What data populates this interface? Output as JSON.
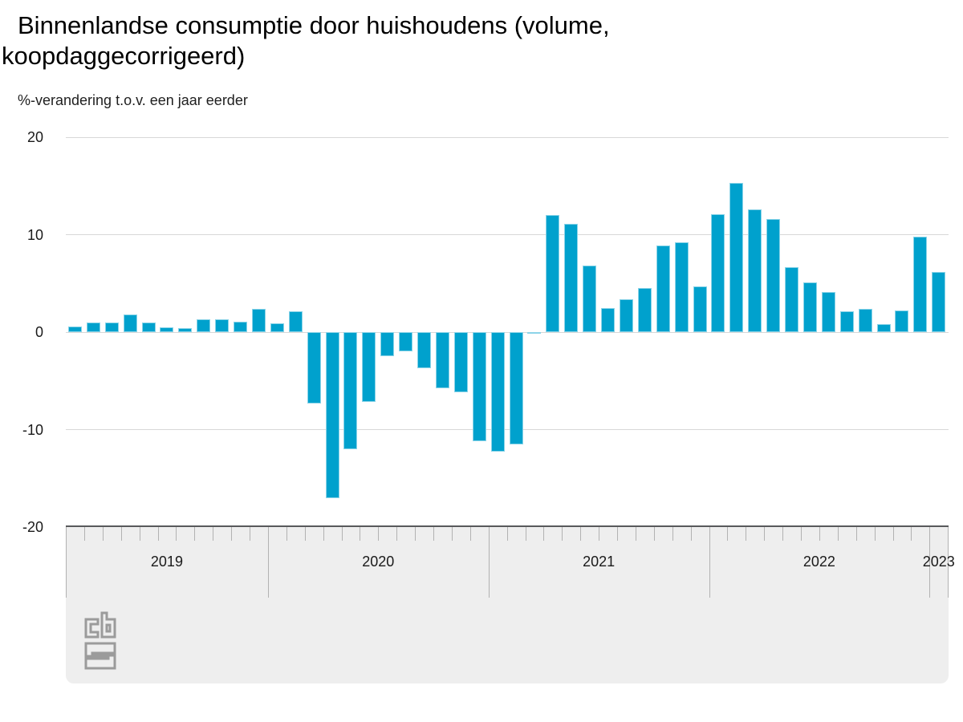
{
  "header": {
    "title_lines": [
      "Binnenlandse consumptie door huishoudens (volume,",
      "koopdaggecorrigeerd)"
    ],
    "subtitle": "%-verandering t.o.v. een jaar eerder"
  },
  "branding": {
    "logo_name": "CBS (Centraal Bureau voor de Statistiek) logo"
  },
  "colors": {
    "bar": "#00a1cd",
    "gridline": "#d8d8d8",
    "axis_band": "#eeeeee",
    "axis_line": "#58595b",
    "tick": "#b2b2b2",
    "text": "#1a1a1a"
  },
  "chart_data": {
    "type": "bar",
    "title": "Binnenlandse consumptie door huishoudens (volume, koopdaggecorrigeerd)",
    "subtitle": "%-verandering t.o.v. een jaar eerder",
    "unit": "%",
    "ylim": [
      -20,
      20
    ],
    "yticks": [
      20,
      10,
      0,
      -10,
      -20
    ],
    "grid": true,
    "legend": "none",
    "x_axis_years": [
      {
        "label": "2019",
        "months": 11
      },
      {
        "label": "2020",
        "months": 12
      },
      {
        "label": "2021",
        "months": 12
      },
      {
        "label": "2022",
        "months": 12
      },
      {
        "label": "2023",
        "months": 1
      }
    ],
    "series": [
      {
        "name": "%-verandering t.o.v. een jaar eerder",
        "months": [
          "2019-02",
          "2019-03",
          "2019-04",
          "2019-05",
          "2019-06",
          "2019-07",
          "2019-08",
          "2019-09",
          "2019-10",
          "2019-11",
          "2019-12",
          "2020-01",
          "2020-02",
          "2020-03",
          "2020-04",
          "2020-05",
          "2020-06",
          "2020-07",
          "2020-08",
          "2020-09",
          "2020-10",
          "2020-11",
          "2020-12",
          "2021-01",
          "2021-02",
          "2021-03",
          "2021-04",
          "2021-05",
          "2021-06",
          "2021-07",
          "2021-08",
          "2021-09",
          "2021-10",
          "2021-11",
          "2021-12",
          "2022-01",
          "2022-02",
          "2022-03",
          "2022-04",
          "2022-05",
          "2022-06",
          "2022-07",
          "2022-08",
          "2022-09",
          "2022-10",
          "2022-11",
          "2022-12",
          "2023-01"
        ],
        "values": [
          0.6,
          1.0,
          1.0,
          1.8,
          1.0,
          0.5,
          0.4,
          1.3,
          1.3,
          1.1,
          2.4,
          0.9,
          2.1,
          -7.3,
          -17.0,
          -12.0,
          -7.2,
          -2.5,
          -2.0,
          -3.7,
          -5.8,
          -6.2,
          -11.2,
          -12.3,
          -11.5,
          -0.2,
          12.0,
          11.1,
          6.8,
          2.5,
          3.4,
          4.5,
          8.9,
          9.2,
          4.7,
          12.1,
          15.3,
          12.6,
          11.6,
          6.7,
          5.1,
          4.1,
          2.1,
          2.4,
          0.8,
          2.2,
          9.8,
          6.2
        ]
      }
    ]
  }
}
